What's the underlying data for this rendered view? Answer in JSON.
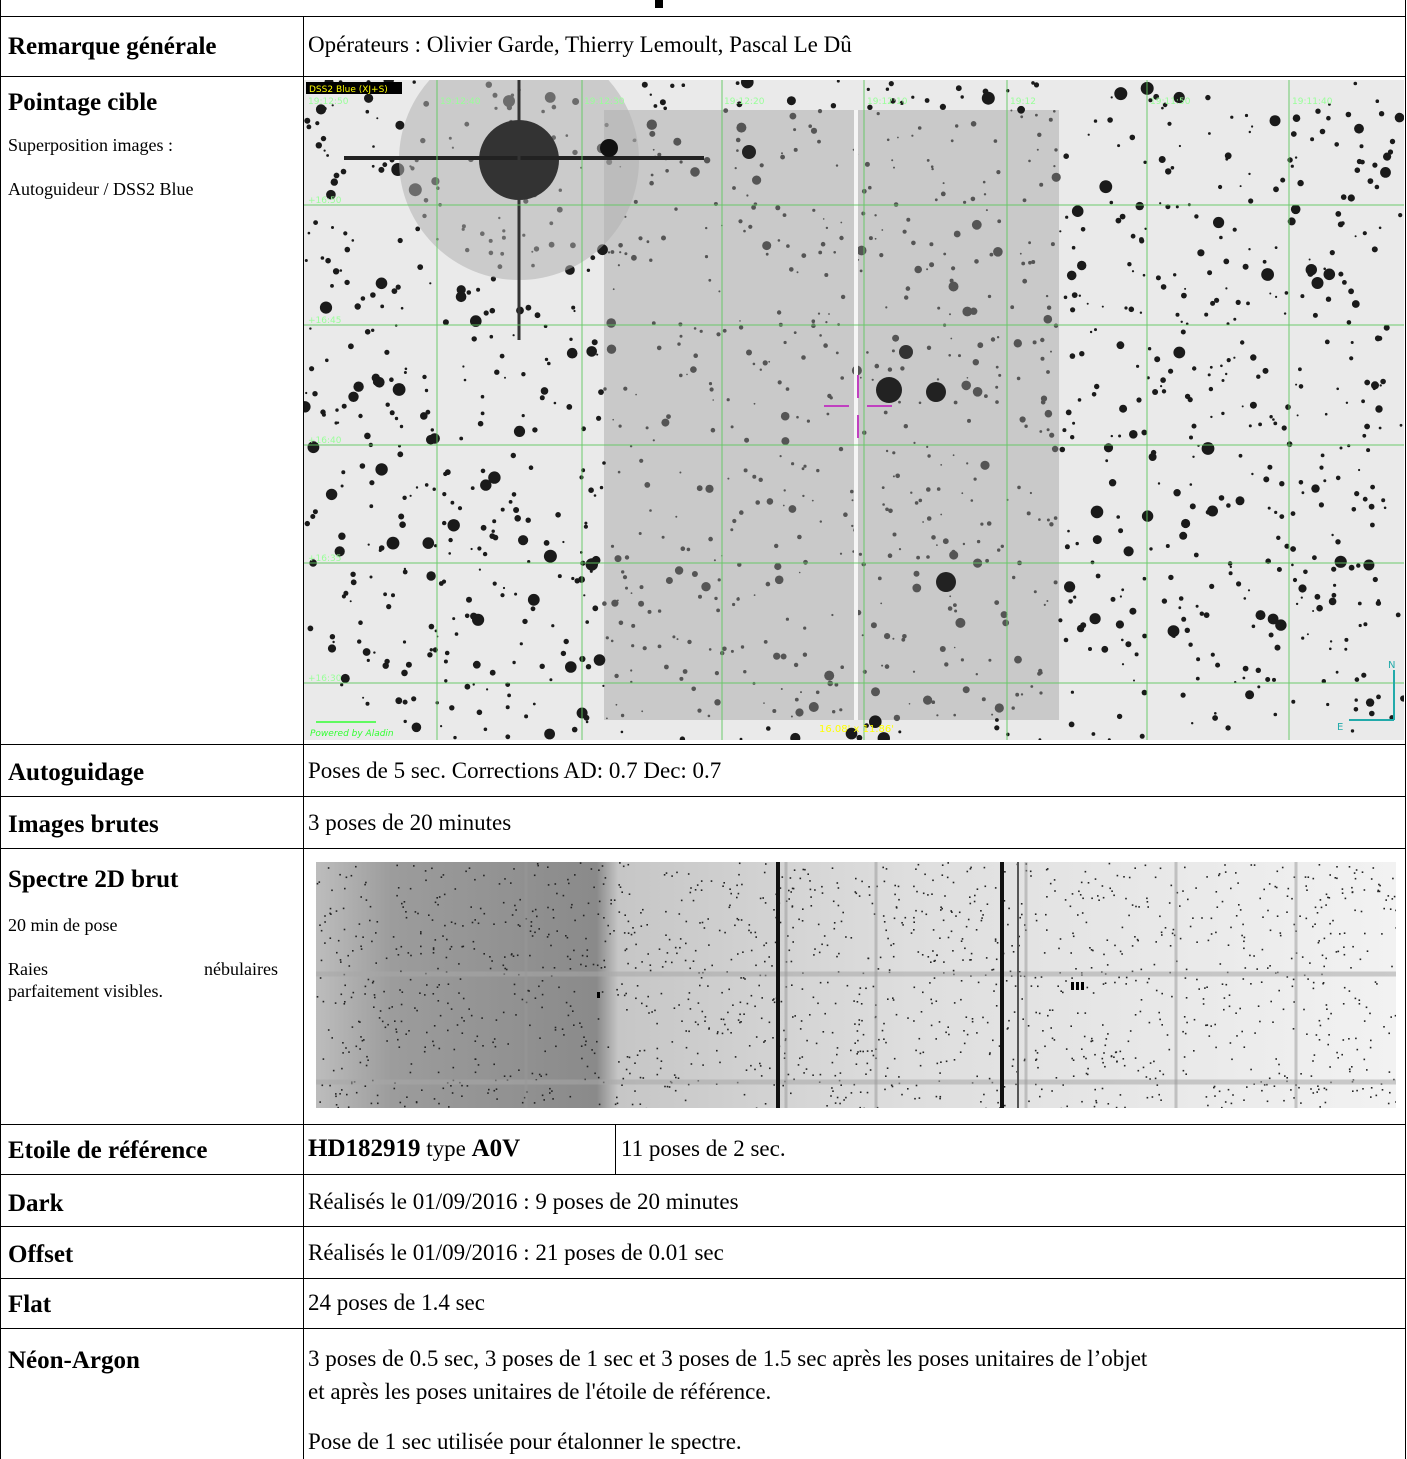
{
  "header": {
    "title_fragment": ""
  },
  "rows": {
    "remarque": {
      "label": "Remarque générale",
      "value": "Opérateurs : Olivier Garde, Thierry Lemoult, Pascal Le Dû"
    },
    "pointage": {
      "label": "Pointage cible",
      "sub1": "Superposition images :",
      "sub2": "Autoguideur / DSS2 Blue"
    },
    "autoguidage": {
      "label": "Autoguidage",
      "value": "Poses de 5 sec. Corrections AD: 0.7 Dec: 0.7"
    },
    "images_brutes": {
      "label": "Images brutes",
      "value": "3 poses de 20 minutes"
    },
    "spectre": {
      "label": "Spectre 2D brut",
      "sub1": "20 min de pose",
      "sub2a": "Raies",
      "sub2b": "nébulaires",
      "sub3": "parfaitement visibles."
    },
    "etoile": {
      "label": "Etoile de référence",
      "star_name": "HD182919",
      "type_word": "type",
      "spectral_type": "A0V",
      "poses": "11 poses de 2 sec."
    },
    "dark": {
      "label": "Dark",
      "value": "Réalisés le 01/09/2016 : 9 poses de 20 minutes"
    },
    "offset": {
      "label": "Offset",
      "value": "Réalisés le 01/09/2016 : 21 poses de 0.01 sec"
    },
    "flat": {
      "label": "Flat",
      "value": "24 poses de 1.4 sec"
    },
    "neon": {
      "label": "Néon-Argon",
      "line1": "3 poses de 0.5 sec, 3 poses de 1 sec et 3 poses de 1.5 sec après les poses unitaires de l’objet",
      "line2": "et après les poses unitaires de l'étoile de référence.",
      "line3": "Pose de 1 sec utilisée pour étalonner le spectre."
    }
  },
  "sky_image": {
    "survey_label": "DSS2 Blue (XJ+S)",
    "ra_ticks": [
      "19:12:50",
      "19:12:40",
      "19:12:30",
      "19:12:20",
      "19:12:10",
      "19:12",
      "19:11:50",
      "19:11:40"
    ],
    "dec_ticks": [
      "+16:50",
      "+16:45",
      "+16:40",
      "+16:35",
      "+16:30",
      "+16:25"
    ],
    "fov_label": "16.08' x 11.86'",
    "powered_by": "Powered by Aladin",
    "compass_n": "N",
    "compass_e": "E"
  }
}
